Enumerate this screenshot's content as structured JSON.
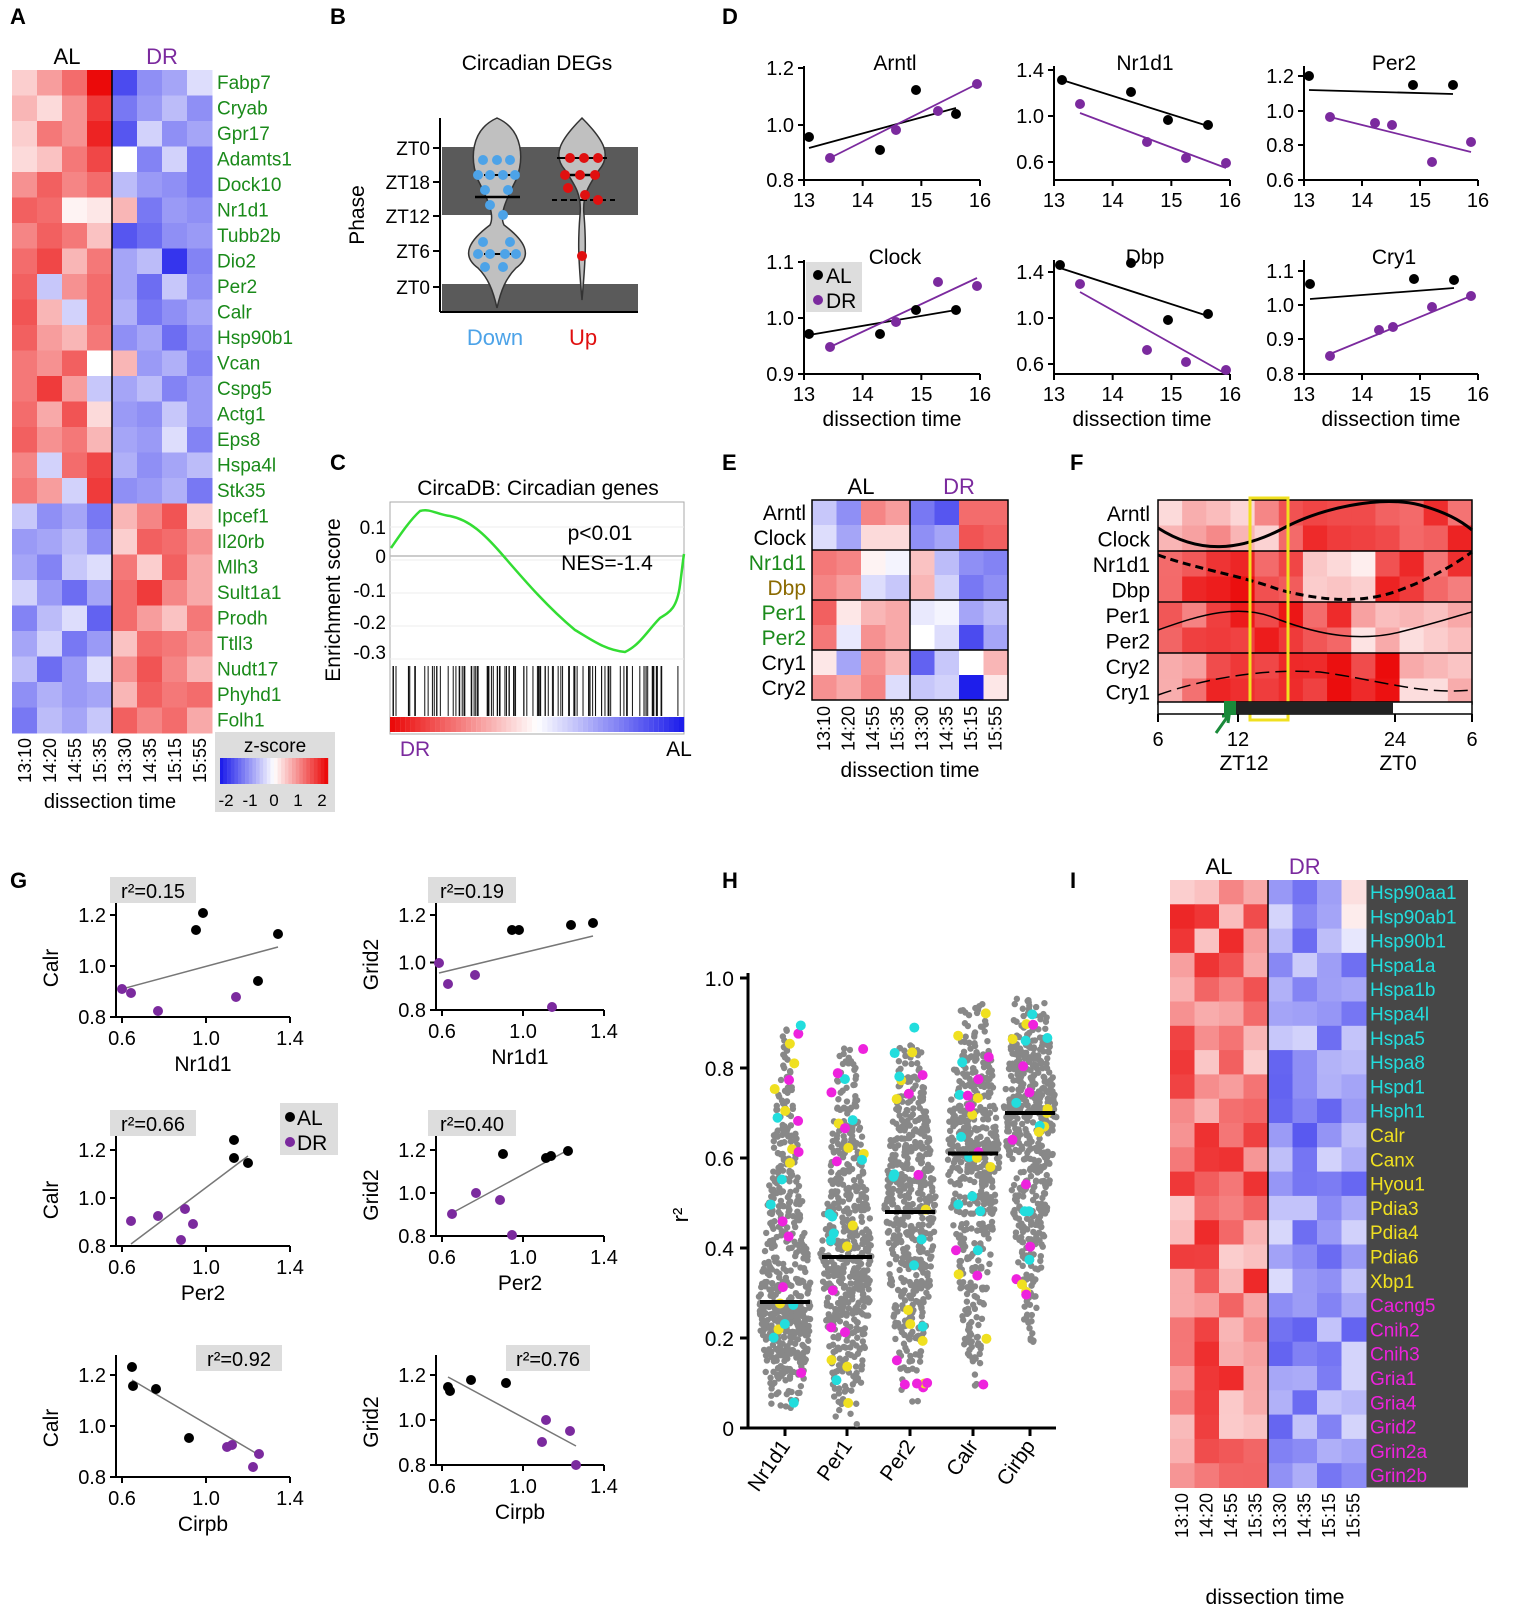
{
  "colors": {
    "al": "#000000",
    "dr": "#7b2a9e",
    "clock_gene": "#1a8a1a",
    "dbp_gene": "#8b6a00",
    "up": "#e01010",
    "down": "#4da3e8",
    "gsea": "#33dd33",
    "cyan": "#22dddd",
    "yellow": "#f0e020",
    "magenta": "#ee22dd",
    "dots_gray": "#888888",
    "highlight": "#f0e020"
  },
  "panels": {
    "A": {
      "letter": "A",
      "group_al": "AL",
      "group_dr": "DR",
      "genes": [
        "Fabp7",
        "Cryab",
        "Gpr17",
        "Adamts1",
        "Dock10",
        "Nr1d1",
        "Tubb2b",
        "Dio2",
        "Per2",
        "Calr",
        "Hsp90b1",
        "Vcan",
        "Cspg5",
        "Actg1",
        "Eps8",
        "Hspa4l",
        "Stk35",
        "Ipcef1",
        "Il20rb",
        "Mlh3",
        "Sult1a1",
        "Prodh",
        "Ttll3",
        "Nudt17",
        "Phyhd1",
        "Folh1"
      ],
      "times": [
        "13:10",
        "14:20",
        "14:55",
        "15:35",
        "13:30",
        "14:35",
        "15:15",
        "15:55"
      ],
      "xlabel": "dissection time",
      "zscore_label": "z-score",
      "zscore_ticks": [
        "-2",
        "-1",
        "0",
        "1",
        "2"
      ],
      "values": [
        [
          0.4,
          0.8,
          1.2,
          2.0,
          -1.6,
          -1.0,
          -0.8,
          -0.3
        ],
        [
          0.6,
          0.3,
          0.9,
          1.6,
          -1.2,
          -0.9,
          -0.6,
          -1.0
        ],
        [
          0.4,
          1.1,
          0.9,
          1.8,
          -1.5,
          -0.4,
          -1.0,
          -0.8
        ],
        [
          0.3,
          0.5,
          1.1,
          1.5,
          0.0,
          -1.1,
          -0.4,
          -1.2
        ],
        [
          0.9,
          1.3,
          1.0,
          1.2,
          -0.6,
          -0.9,
          -1.0,
          -1.2
        ],
        [
          1.3,
          1.2,
          0.1,
          0.2,
          0.6,
          -1.2,
          -0.9,
          -1.0
        ],
        [
          1.0,
          1.3,
          1.1,
          0.5,
          -1.5,
          -1.3,
          -1.0,
          -0.9
        ],
        [
          1.2,
          1.5,
          0.6,
          1.1,
          -0.8,
          -0.6,
          -1.8,
          -1.1
        ],
        [
          1.3,
          -0.5,
          0.9,
          1.2,
          -0.8,
          -1.3,
          -0.5,
          -1.0
        ],
        [
          1.4,
          0.6,
          -0.4,
          1.2,
          -0.7,
          -1.2,
          -1.0,
          -0.8
        ],
        [
          1.3,
          0.8,
          0.6,
          1.1,
          -1.0,
          -0.8,
          -1.3,
          -1.0
        ],
        [
          1.1,
          0.9,
          1.3,
          0.0,
          0.6,
          -0.9,
          -0.7,
          -1.1
        ],
        [
          1.1,
          1.6,
          0.8,
          -0.5,
          -0.8,
          -0.6,
          -1.1,
          -0.9
        ],
        [
          1.2,
          0.7,
          1.4,
          0.3,
          -0.9,
          -1.0,
          -0.5,
          -0.9
        ],
        [
          1.3,
          0.9,
          1.1,
          0.6,
          -0.8,
          -0.9,
          -0.3,
          -1.1
        ],
        [
          1.0,
          -0.4,
          1.2,
          1.5,
          -0.7,
          -1.0,
          -0.8,
          -0.6
        ],
        [
          1.1,
          0.8,
          -0.4,
          1.6,
          -1.0,
          -0.9,
          -0.7,
          -1.2
        ],
        [
          -0.5,
          -1.0,
          -0.8,
          -1.2,
          0.6,
          1.0,
          1.4,
          0.4
        ],
        [
          -0.9,
          -0.8,
          -0.6,
          -1.0,
          0.4,
          1.3,
          1.2,
          0.9
        ],
        [
          -0.8,
          -1.1,
          -0.5,
          -0.3,
          1.1,
          0.4,
          1.3,
          0.7
        ],
        [
          -0.4,
          -0.9,
          -1.3,
          -0.8,
          1.2,
          1.6,
          1.0,
          0.7
        ],
        [
          -1.1,
          -0.6,
          -0.3,
          -1.4,
          1.2,
          0.8,
          0.5,
          1.1
        ],
        [
          -0.8,
          -0.4,
          -1.2,
          -0.9,
          0.5,
          1.2,
          1.1,
          0.9
        ],
        [
          -0.6,
          -1.3,
          -0.9,
          -0.3,
          0.9,
          1.4,
          1.0,
          0.6
        ],
        [
          -1.0,
          -0.7,
          -0.9,
          -0.8,
          0.6,
          1.3,
          1.1,
          1.2
        ],
        [
          -1.2,
          -0.6,
          -0.8,
          -0.5,
          1.3,
          1.0,
          1.2,
          0.7
        ]
      ]
    },
    "B": {
      "letter": "B",
      "title": "Circadian DEGs",
      "ylabel": "Phase",
      "ytick_labels": [
        "ZT0",
        "ZT18",
        "ZT12",
        "ZT6",
        "ZT0"
      ],
      "groups": [
        "Down",
        "Up"
      ]
    },
    "C": {
      "letter": "C",
      "title": "CircaDB: Circadian genes",
      "ylabel": "Enrichment score",
      "yticks": [
        "0.1",
        "0",
        "-0.1",
        "-0.2",
        "-0.3"
      ],
      "pvalue": "p<0.01",
      "nes": "NES=-1.4",
      "left_label": "DR",
      "right_label": "AL"
    },
    "D": {
      "letter": "D",
      "xticks": [
        "13",
        "14",
        "15",
        "16"
      ],
      "xlabel": "dissection time",
      "legend": [
        "AL",
        "DR"
      ],
      "plots": [
        {
          "title": "Arntl",
          "yticks": [
            "1.2",
            "1.0",
            "0.8"
          ]
        },
        {
          "title": "Nr1d1",
          "yticks": [
            "1.4",
            "1.0",
            "0.6"
          ]
        },
        {
          "title": "Per2",
          "yticks": [
            "1.2",
            "1.0",
            "0.8",
            "0.6"
          ]
        },
        {
          "title": "Clock",
          "yticks": [
            "1.1",
            "1.0",
            "0.9"
          ]
        },
        {
          "title": "Dbp",
          "yticks": [
            "1.4",
            "1.0",
            "0.6"
          ]
        },
        {
          "title": "Cry1",
          "yticks": [
            "1.1",
            "1.0",
            "0.9",
            "0.8"
          ]
        }
      ]
    },
    "E": {
      "letter": "E",
      "group_al": "AL",
      "group_dr": "DR",
      "genes": [
        "Arntl",
        "Clock",
        "Nr1d1",
        "Dbp",
        "Per1",
        "Per2",
        "Cry1",
        "Cry2"
      ],
      "times": [
        "13:10",
        "14:20",
        "14:55",
        "15:35",
        "13:30",
        "14:35",
        "15:15",
        "15:55"
      ],
      "xlabel": "dissection time",
      "values": [
        [
          -0.5,
          -1.0,
          1.0,
          0.8,
          -1.2,
          -1.5,
          1.2,
          1.2
        ],
        [
          -0.3,
          -0.8,
          0.3,
          0.3,
          -1.0,
          -0.8,
          1.4,
          1.3
        ],
        [
          1.1,
          1.0,
          0.1,
          -0.1,
          0.5,
          -0.6,
          -1.0,
          -1.1
        ],
        [
          1.0,
          0.8,
          -0.3,
          -0.5,
          0.6,
          -0.4,
          -1.2,
          -1.0
        ],
        [
          1.3,
          0.2,
          0.6,
          0.7,
          -0.2,
          -0.1,
          -0.8,
          -0.6
        ],
        [
          1.1,
          -0.2,
          0.9,
          0.7,
          0.0,
          -0.3,
          -1.6,
          -0.8
        ],
        [
          0.2,
          -0.8,
          0.9,
          0.6,
          -1.4,
          -0.5,
          0.0,
          0.6
        ],
        [
          0.9,
          0.7,
          1.0,
          -0.3,
          -0.5,
          -0.4,
          -2.0,
          0.2
        ]
      ]
    },
    "F": {
      "letter": "F",
      "genes": [
        "Arntl",
        "Clock",
        "Nr1d1",
        "Dbp",
        "Per1",
        "Per2",
        "Cry2",
        "Cry1"
      ],
      "xticks": [
        "6",
        "12",
        "24",
        "6"
      ],
      "zt_labels": [
        "ZT12",
        "ZT0"
      ]
    },
    "G": {
      "letter": "G",
      "xticks": [
        "0.6",
        "1.0",
        "1.4"
      ],
      "yticks": [
        "1.2",
        "1.0",
        "0.8"
      ],
      "legend": [
        "AL",
        "DR"
      ],
      "plots": [
        {
          "r2": "r²=0.15",
          "x": "Nr1d1",
          "y": "Calr"
        },
        {
          "r2": "r²=0.19",
          "x": "Nr1d1",
          "y": "Grid2"
        },
        {
          "r2": "r²=0.66",
          "x": "Per2",
          "y": "Calr"
        },
        {
          "r2": "r²=0.40",
          "x": "Per2",
          "y": "Grid2"
        },
        {
          "r2": "r²=0.92",
          "x": "Cirpb",
          "y": "Calr"
        },
        {
          "r2": "r²=0.76",
          "x": "Cirpb",
          "y": "Grid2"
        }
      ]
    },
    "H": {
      "letter": "H",
      "ylabel": "r²",
      "yticks": [
        "0",
        "0.2",
        "0.4",
        "0.6",
        "0.8",
        "1.0"
      ],
      "categories": [
        "Nr1d1",
        "Per1",
        "Per2",
        "Calr",
        "Cirbp"
      ],
      "medians": [
        0.28,
        0.38,
        0.48,
        0.61,
        0.7
      ]
    },
    "I": {
      "letter": "I",
      "group_al": "AL",
      "group_dr": "DR",
      "genes": [
        {
          "name": "Hsp90aa1",
          "cls": "cyan"
        },
        {
          "name": "Hsp90ab1",
          "cls": "cyan"
        },
        {
          "name": "Hsp90b1",
          "cls": "cyan"
        },
        {
          "name": "Hspa1a",
          "cls": "cyan"
        },
        {
          "name": "Hspa1b",
          "cls": "cyan"
        },
        {
          "name": "Hspa4l",
          "cls": "cyan"
        },
        {
          "name": "Hspa5",
          "cls": "cyan"
        },
        {
          "name": "Hspa8",
          "cls": "cyan"
        },
        {
          "name": "Hspd1",
          "cls": "cyan"
        },
        {
          "name": "Hsph1",
          "cls": "cyan"
        },
        {
          "name": "Calr",
          "cls": "yellow"
        },
        {
          "name": "Canx",
          "cls": "yellow"
        },
        {
          "name": "Hyou1",
          "cls": "yellow"
        },
        {
          "name": "Pdia3",
          "cls": "yellow"
        },
        {
          "name": "Pdia4",
          "cls": "yellow"
        },
        {
          "name": "Pdia6",
          "cls": "yellow"
        },
        {
          "name": "Xbp1",
          "cls": "yellow"
        },
        {
          "name": "Cacng5",
          "cls": "magenta"
        },
        {
          "name": "Cnih2",
          "cls": "magenta"
        },
        {
          "name": "Cnih3",
          "cls": "magenta"
        },
        {
          "name": "Gria1",
          "cls": "magenta"
        },
        {
          "name": "Gria4",
          "cls": "magenta"
        },
        {
          "name": "Grid2",
          "cls": "magenta"
        },
        {
          "name": "Grin2a",
          "cls": "magenta"
        },
        {
          "name": "Grin2b",
          "cls": "magenta"
        }
      ],
      "times": [
        "13:10",
        "14:20",
        "14:55",
        "15:35",
        "13:30",
        "14:35",
        "15:15",
        "15:55"
      ],
      "xlabel": "dissection time"
    }
  }
}
